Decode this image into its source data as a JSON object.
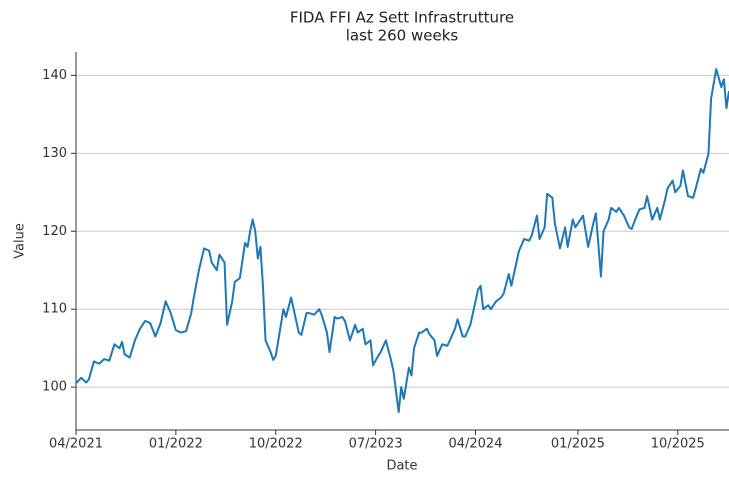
{
  "chart_data": {
    "type": "line",
    "title": "FIDA FFI Az Sett Infrastrutture",
    "subtitle": "last 260 weeks",
    "x_label": "Date",
    "y_label": "Value",
    "x": [
      0,
      2,
      4,
      5,
      7,
      9,
      11,
      13,
      15,
      17,
      18,
      19,
      21,
      23,
      25,
      27,
      29,
      31,
      33,
      35,
      37,
      39,
      41,
      43,
      45,
      46,
      48,
      50,
      52,
      53,
      55,
      56,
      58,
      59,
      61,
      62,
      64,
      66,
      67,
      68,
      69,
      70,
      71,
      72,
      73,
      74,
      76,
      77,
      78,
      80,
      81,
      82,
      84,
      85,
      87,
      88,
      90,
      91,
      93,
      95,
      96,
      98,
      99,
      101,
      102,
      104,
      105,
      107,
      109,
      110,
      112,
      113,
      115,
      116,
      118,
      119,
      121,
      123,
      124,
      126,
      127,
      128,
      130,
      131,
      132,
      134,
      135,
      137,
      138,
      140,
      141,
      143,
      145,
      146,
      148,
      149,
      151,
      152,
      154,
      155,
      157,
      158,
      159,
      161,
      162,
      164,
      166,
      167,
      169,
      170,
      172,
      173,
      175,
      177,
      178,
      180,
      181,
      183,
      184,
      186,
      187,
      189,
      191,
      192,
      194,
      195,
      197,
      198,
      200,
      202,
      203,
      205,
      206,
      208,
      209,
      211,
      212,
      214,
      216,
      217,
      219,
      220,
      222,
      223,
      225,
      227,
      228,
      230,
      231,
      233,
      234,
      236,
      237,
      239,
      241,
      242,
      244,
      245,
      247,
      248,
      250,
      252,
      253,
      254,
      255
    ],
    "series": [
      {
        "color": "#1f77b4",
        "values": [
          100.5,
          101.2,
          100.6,
          101,
          103.3,
          103,
          103.6,
          103.4,
          105.5,
          105,
          105.8,
          104.2,
          103.8,
          106,
          107.5,
          108.5,
          108.2,
          106.5,
          108.2,
          111,
          109.5,
          107.3,
          107,
          107.2,
          109.5,
          111.5,
          115,
          117.8,
          117.5,
          116,
          115,
          117,
          116,
          108,
          111,
          113.5,
          114,
          118.5,
          118,
          120,
          121.5,
          120,
          116.5,
          118,
          113,
          106,
          104.5,
          103.5,
          104,
          108,
          110,
          109,
          111.5,
          110,
          107,
          106.7,
          109.5,
          109.5,
          109.3,
          110,
          109.2,
          107,
          104.5,
          109,
          108.8,
          109,
          108.5,
          106,
          108,
          107,
          107.5,
          105.5,
          106,
          102.8,
          104,
          104.5,
          106,
          103.5,
          102,
          96.8,
          100,
          98.5,
          102.5,
          101.5,
          105,
          107,
          107,
          107.5,
          106.8,
          106,
          104,
          105.5,
          105.3,
          106,
          107.5,
          108.7,
          106.5,
          106.5,
          108,
          109.5,
          112.5,
          113,
          110,
          110.5,
          110,
          111,
          111.5,
          112,
          114.5,
          113,
          116,
          117.5,
          119,
          118.8,
          119.5,
          122,
          119,
          120.5,
          124.8,
          124.3,
          121,
          117.8,
          120.5,
          118,
          121.5,
          120.5,
          121.5,
          122,
          118,
          121,
          122.3,
          114.2,
          120,
          121.5,
          123,
          122.5,
          123,
          122,
          120.5,
          120.3,
          122,
          122.8,
          123,
          124.5,
          121.5,
          123,
          121.5,
          124,
          125.5,
          126.5,
          125,
          125.8,
          127.8,
          124.5,
          124.3,
          125.5,
          128,
          127.5,
          130,
          137,
          140.8,
          138.5,
          139.5,
          135.8,
          138
        ]
      }
    ],
    "xlim": [
      0,
      255
    ],
    "xticks": [
      {
        "value": 0,
        "label": "04/2021"
      },
      {
        "value": 39,
        "label": "01/2022"
      },
      {
        "value": 78,
        "label": "10/2022"
      },
      {
        "value": 117,
        "label": "07/2023"
      },
      {
        "value": 156,
        "label": "04/2024"
      },
      {
        "value": 196,
        "label": "01/2025"
      },
      {
        "value": 235,
        "label": "10/2025"
      }
    ],
    "ylim": [
      94.5,
      143
    ],
    "yticks": [
      100,
      110,
      120,
      130,
      140
    ],
    "grid": true
  }
}
